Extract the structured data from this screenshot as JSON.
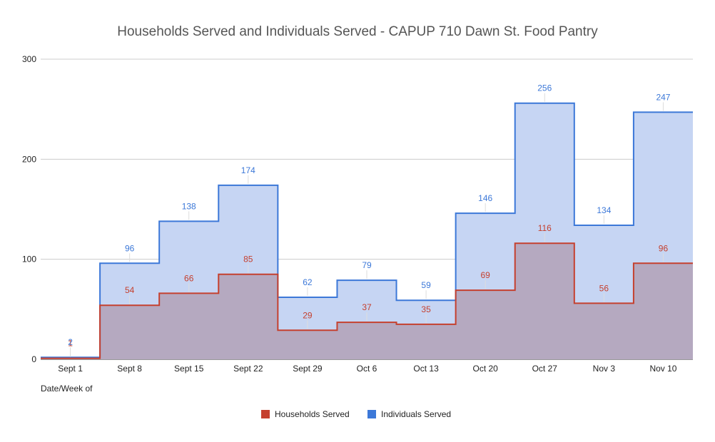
{
  "chart_data": {
    "type": "area",
    "step": true,
    "title": "Households Served and Individuals Served - CAPUP 710 Dawn St. Food Pantry",
    "xlabel": "Date/Week of",
    "ylabel": "",
    "ylim": [
      0,
      300
    ],
    "yticks": [
      0,
      100,
      200,
      300
    ],
    "grid": true,
    "legend_position": "bottom",
    "categories": [
      "Sept 1",
      "Sept 8",
      "Sept 15",
      "Sept 22",
      "Sept 29",
      "Oct 6",
      "Oct 13",
      "Oct 20",
      "Oct 27",
      "Nov 3",
      "Nov 10"
    ],
    "series": [
      {
        "name": "Households Served",
        "color": "#c5402e",
        "fill": "#b5a9c0",
        "values": [
          1,
          54,
          66,
          85,
          29,
          37,
          35,
          69,
          116,
          56,
          96
        ]
      },
      {
        "name": "Individuals Served",
        "color": "#3c78d8",
        "fill": "#c6d5f3",
        "values": [
          2,
          96,
          138,
          174,
          62,
          79,
          59,
          146,
          256,
          134,
          247
        ]
      }
    ]
  }
}
